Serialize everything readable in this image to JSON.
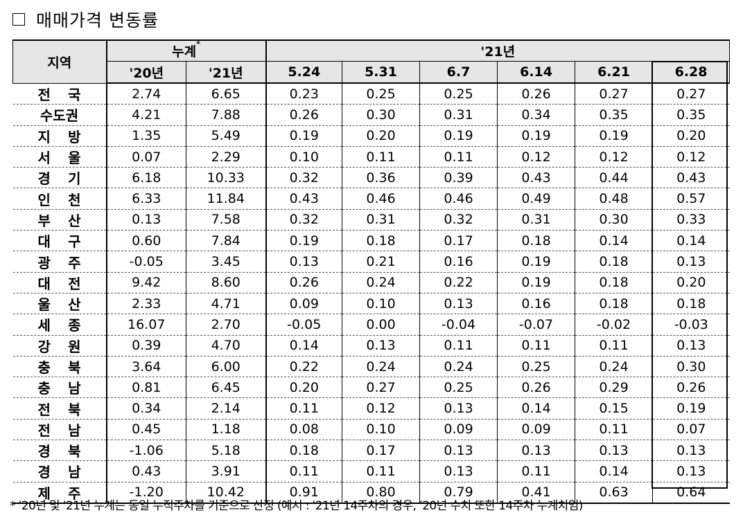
{
  "title": "매매가격 변동률",
  "header": {
    "region": "지역",
    "cumulative": "누계",
    "cumulative_mark": "*",
    "year_group": "'21년",
    "cols": [
      "'20년",
      "'21년",
      "5.24",
      "5.31",
      "6.7",
      "6.14",
      "6.21",
      "6.28"
    ]
  },
  "rows": [
    {
      "region": [
        "전",
        "국"
      ],
      "values": [
        "2.74",
        "6.65",
        "0.23",
        "0.25",
        "0.25",
        "0.26",
        "0.27",
        "0.27"
      ]
    },
    {
      "region": [
        "수도권"
      ],
      "values": [
        "4.21",
        "7.88",
        "0.26",
        "0.30",
        "0.31",
        "0.34",
        "0.35",
        "0.35"
      ]
    },
    {
      "region": [
        "지",
        "방"
      ],
      "values": [
        "1.35",
        "5.49",
        "0.19",
        "0.20",
        "0.19",
        "0.19",
        "0.19",
        "0.20"
      ]
    },
    {
      "region": [
        "서",
        "울"
      ],
      "values": [
        "0.07",
        "2.29",
        "0.10",
        "0.11",
        "0.11",
        "0.12",
        "0.12",
        "0.12"
      ]
    },
    {
      "region": [
        "경",
        "기"
      ],
      "values": [
        "6.18",
        "10.33",
        "0.32",
        "0.36",
        "0.39",
        "0.43",
        "0.44",
        "0.43"
      ]
    },
    {
      "region": [
        "인",
        "천"
      ],
      "values": [
        "6.33",
        "11.84",
        "0.43",
        "0.46",
        "0.46",
        "0.49",
        "0.48",
        "0.57"
      ]
    },
    {
      "region": [
        "부",
        "산"
      ],
      "values": [
        "0.13",
        "7.58",
        "0.32",
        "0.31",
        "0.32",
        "0.31",
        "0.30",
        "0.33"
      ]
    },
    {
      "region": [
        "대",
        "구"
      ],
      "values": [
        "0.60",
        "7.84",
        "0.19",
        "0.18",
        "0.17",
        "0.18",
        "0.14",
        "0.14"
      ]
    },
    {
      "region": [
        "광",
        "주"
      ],
      "values": [
        "-0.05",
        "3.45",
        "0.13",
        "0.21",
        "0.16",
        "0.19",
        "0.18",
        "0.13"
      ]
    },
    {
      "region": [
        "대",
        "전"
      ],
      "values": [
        "9.42",
        "8.60",
        "0.26",
        "0.24",
        "0.22",
        "0.19",
        "0.18",
        "0.20"
      ]
    },
    {
      "region": [
        "울",
        "산"
      ],
      "values": [
        "2.33",
        "4.71",
        "0.09",
        "0.10",
        "0.13",
        "0.16",
        "0.18",
        "0.18"
      ]
    },
    {
      "region": [
        "세",
        "종"
      ],
      "values": [
        "16.07",
        "2.70",
        "-0.05",
        "0.00",
        "-0.04",
        "-0.07",
        "-0.02",
        "-0.03"
      ]
    },
    {
      "region": [
        "강",
        "원"
      ],
      "values": [
        "0.39",
        "4.70",
        "0.14",
        "0.13",
        "0.11",
        "0.11",
        "0.11",
        "0.13"
      ]
    },
    {
      "region": [
        "충",
        "북"
      ],
      "values": [
        "3.64",
        "6.00",
        "0.22",
        "0.24",
        "0.24",
        "0.25",
        "0.24",
        "0.30"
      ]
    },
    {
      "region": [
        "충",
        "남"
      ],
      "values": [
        "0.81",
        "6.45",
        "0.20",
        "0.27",
        "0.25",
        "0.26",
        "0.29",
        "0.26"
      ]
    },
    {
      "region": [
        "전",
        "북"
      ],
      "values": [
        "0.34",
        "2.14",
        "0.11",
        "0.12",
        "0.13",
        "0.14",
        "0.15",
        "0.19"
      ]
    },
    {
      "region": [
        "전",
        "남"
      ],
      "values": [
        "0.45",
        "1.18",
        "0.08",
        "0.10",
        "0.09",
        "0.09",
        "0.11",
        "0.07"
      ]
    },
    {
      "region": [
        "경",
        "북"
      ],
      "values": [
        "-1.06",
        "5.18",
        "0.18",
        "0.17",
        "0.13",
        "0.13",
        "0.13",
        "0.13"
      ]
    },
    {
      "region": [
        "경",
        "남"
      ],
      "values": [
        "0.43",
        "3.91",
        "0.11",
        "0.11",
        "0.13",
        "0.11",
        "0.14",
        "0.13"
      ]
    },
    {
      "region": [
        "제",
        "주"
      ],
      "values": [
        "-1.20",
        "10.42",
        "0.91",
        "0.80",
        "0.79",
        "0.41",
        "0.63",
        "0.64"
      ]
    }
  ],
  "footnote": "* '20년 및 '21년 누계는 동일 누적주차를 기준으로 산정 (예시 : '21년 14주차의 경우, '20년 수치 또한 14주차 누계치임)"
}
